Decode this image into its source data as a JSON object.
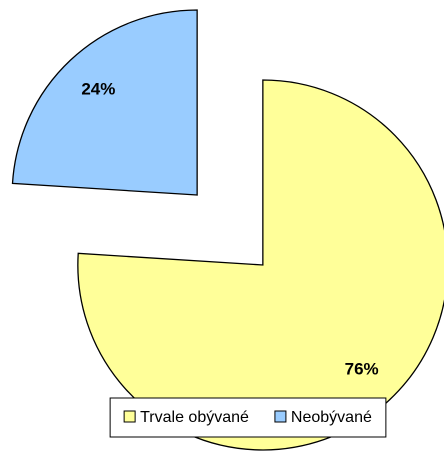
{
  "chart_data": {
    "type": "pie",
    "categories": [
      "Trvale obývané",
      "Neobývané"
    ],
    "values": [
      76,
      24
    ],
    "value_labels": [
      "76%",
      "24%"
    ],
    "colors": [
      "#ffff99",
      "#99ccff"
    ],
    "legend": "bottom"
  }
}
